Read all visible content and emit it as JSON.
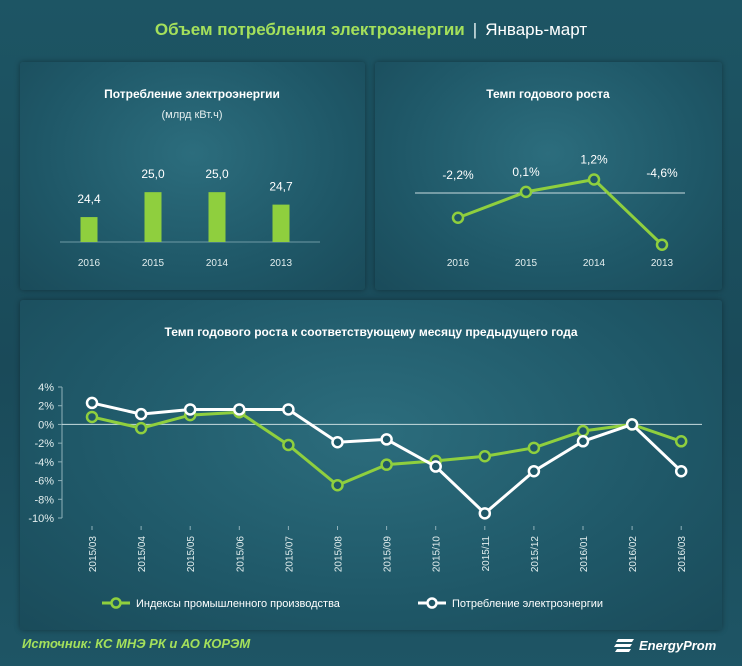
{
  "header": {
    "title_accent": "Объем потребления электроэнергии",
    "separator": "|",
    "title_rest": "Январь-март"
  },
  "colors": {
    "green": "#8fcf3e",
    "white": "#ffffff",
    "text": "#e3eeee",
    "background": "#1d5564"
  },
  "chart_data": [
    {
      "type": "bar",
      "title": "Потребление электроэнергии",
      "subtitle": "(млрд кВт.ч)",
      "categories": [
        "2016",
        "2015",
        "2014",
        "2013"
      ],
      "values": [
        24.4,
        25.0,
        25.0,
        24.7
      ],
      "labels": [
        "24,4",
        "25,0",
        "25,0",
        "24,7"
      ],
      "ylim": [
        23.8,
        25.1
      ],
      "grid": false
    },
    {
      "type": "line",
      "title": "Темп годового  роста",
      "categories": [
        "2016",
        "2015",
        "2014",
        "2013"
      ],
      "values": [
        -2.2,
        0.1,
        1.2,
        -4.6
      ],
      "labels": [
        "-2,2%",
        "0,1%",
        "1,2%",
        "-4,6%"
      ],
      "ylim": [
        -5,
        2
      ],
      "zero_line": true
    },
    {
      "type": "line",
      "title": "Темп годового  роста к соответствующему месяцу предыдущего года",
      "categories": [
        "2015/03",
        "2015/04",
        "2015/05",
        "2015/06",
        "2015/07",
        "2015/08",
        "2015/09",
        "2015/10",
        "2015/11",
        "2015/12",
        "2016/01",
        "2016/02",
        "2016/03"
      ],
      "y_ticks": [
        "4%",
        "2%",
        "0%",
        "-2%",
        "-4%",
        "-6%",
        "-8%",
        "-10%"
      ],
      "ylim": [
        -10,
        4
      ],
      "series": [
        {
          "name": "Индексы промышленного производства",
          "color": "#8fcf3e",
          "values": [
            0.8,
            -0.4,
            1.0,
            1.3,
            -2.2,
            -6.5,
            -4.3,
            -3.9,
            -3.4,
            -2.5,
            -0.7,
            0.0,
            -1.8
          ]
        },
        {
          "name": "Потребление электроэнергии",
          "color": "#ffffff",
          "values": [
            2.3,
            1.1,
            1.6,
            1.6,
            1.6,
            -1.9,
            -1.6,
            -4.5,
            -9.5,
            -5.0,
            -1.8,
            0.0,
            -5.0
          ]
        }
      ],
      "legend": "bottom"
    }
  ],
  "footer": {
    "source": "Источник: КС МНЭ РК и АО КОРЭМ",
    "logo_text": "EnergyProm"
  }
}
